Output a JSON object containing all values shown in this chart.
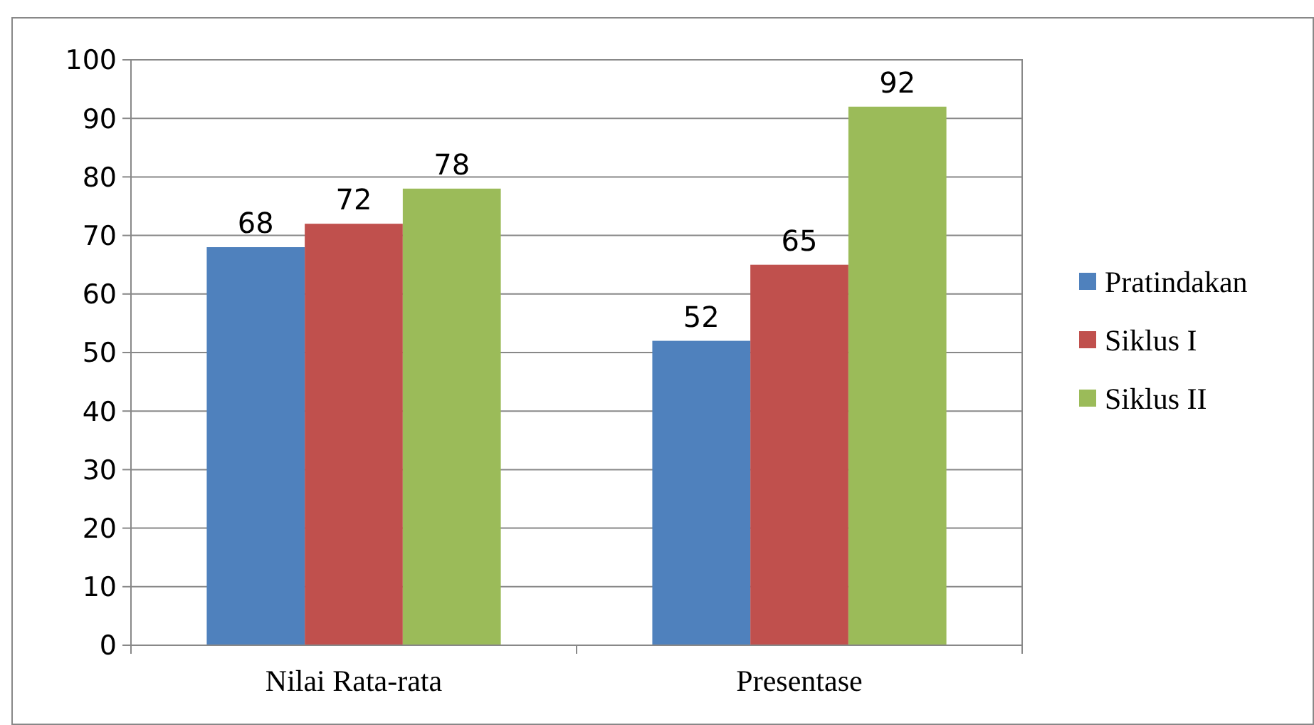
{
  "chart_data": {
    "type": "bar",
    "categories": [
      "Nilai Rata-rata",
      "Presentase"
    ],
    "series": [
      {
        "name": "Pratindakan",
        "color": "#4f81bd",
        "values": [
          68,
          52
        ]
      },
      {
        "name": "Siklus I",
        "color": "#c0504d",
        "values": [
          72,
          65
        ]
      },
      {
        "name": "Siklus II",
        "color": "#9bbb59",
        "values": [
          78,
          92
        ]
      }
    ],
    "ylim": [
      0,
      100
    ],
    "yticks": [
      0,
      10,
      20,
      30,
      40,
      50,
      60,
      70,
      80,
      90,
      100
    ],
    "grid": "y",
    "legend": "right",
    "data_labels": true
  }
}
